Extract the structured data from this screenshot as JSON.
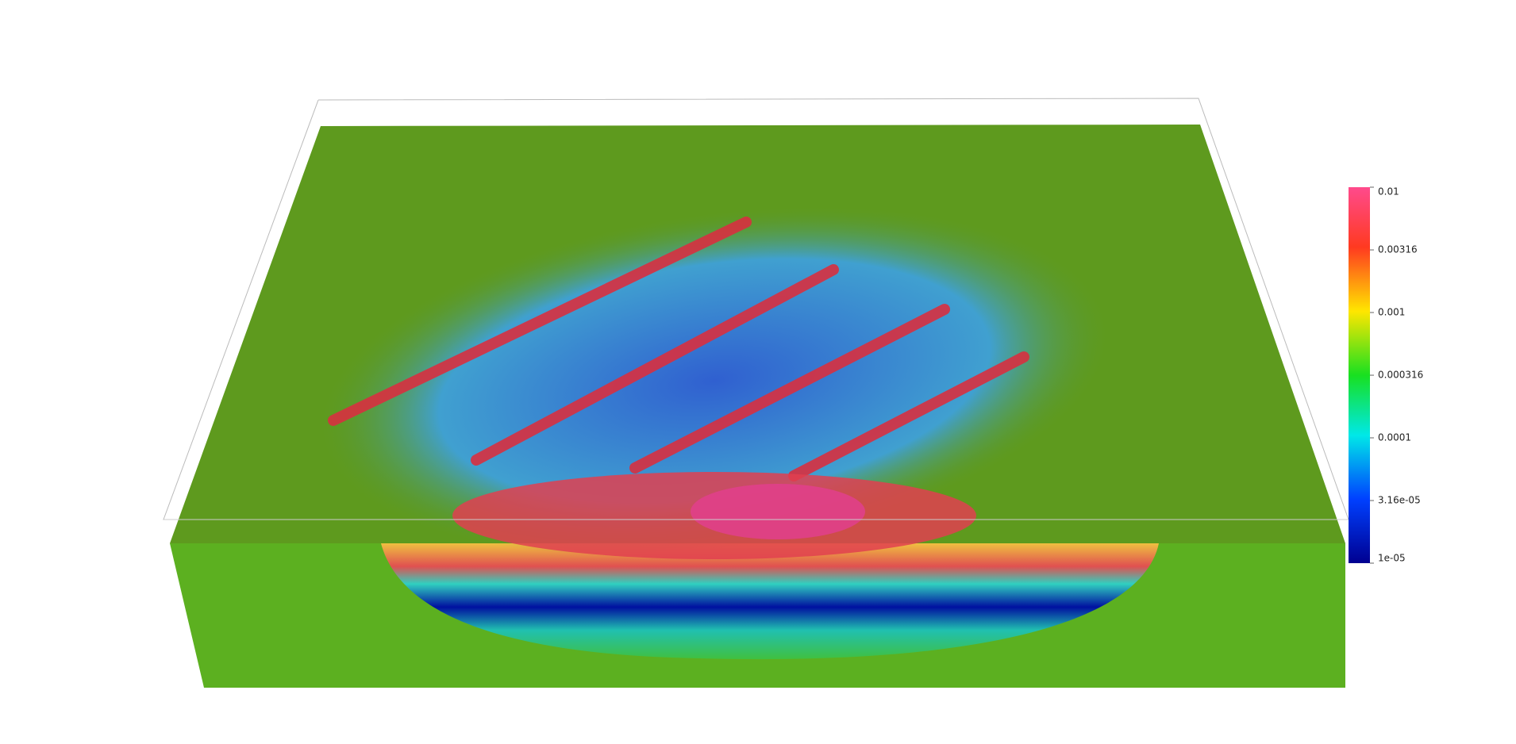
{
  "colorbar": {
    "scale": "log",
    "lim": [
      1e-05,
      0.01
    ],
    "ticks": [
      0.01,
      0.00316,
      0.001,
      0.000316,
      0.0001,
      {
        "value": 3.16e-05,
        "label": "3.16e-05"
      },
      {
        "value": 1e-05,
        "label": "1e-05"
      }
    ]
  }
}
